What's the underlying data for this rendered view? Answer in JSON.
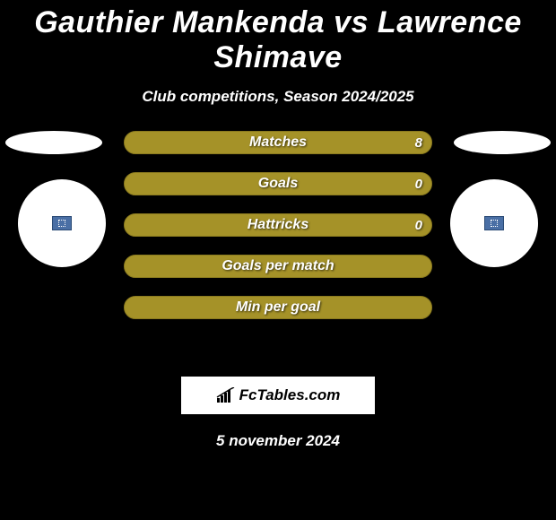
{
  "title": "Gauthier Mankenda vs Lawrence Shimave",
  "subtitle": "Club competitions, Season 2024/2025",
  "date": "5 november 2024",
  "logo_text": "FcTables.com",
  "colors": {
    "bar_bg": "#a59228",
    "bar_fill": "#a59228",
    "bar_border": "#8a7a1f",
    "badge_bg": "#4a6fa5"
  },
  "bars": [
    {
      "label": "Matches",
      "value": "8",
      "fill_pct": 100,
      "show_value": true
    },
    {
      "label": "Goals",
      "value": "0",
      "fill_pct": 100,
      "show_value": true
    },
    {
      "label": "Hattricks",
      "value": "0",
      "fill_pct": 100,
      "show_value": true
    },
    {
      "label": "Goals per match",
      "value": "",
      "fill_pct": 97,
      "show_value": false
    },
    {
      "label": "Min per goal",
      "value": "",
      "fill_pct": 97,
      "show_value": false
    }
  ]
}
